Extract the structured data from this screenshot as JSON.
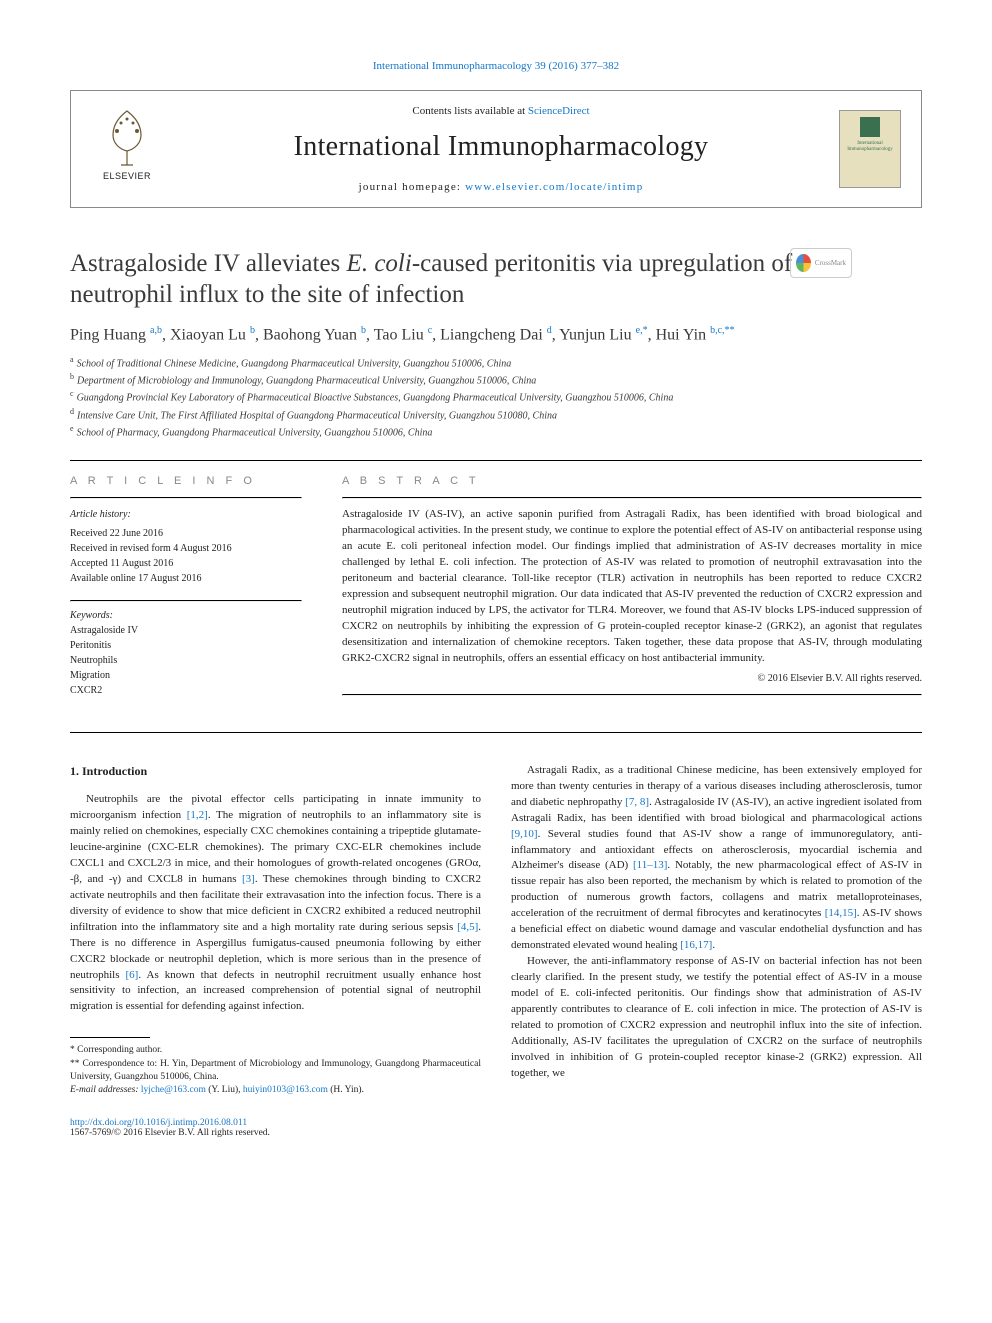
{
  "header": {
    "journal_ref": "International Immunopharmacology 39 (2016) 377–382",
    "contents_prefix": "Contents lists available at ",
    "contents_link": "ScienceDirect",
    "journal_name": "International Immunopharmacology",
    "homepage_label": "journal homepage: ",
    "homepage_url": "www.elsevier.com/locate/intimp",
    "elsevier": "ELSEVIER",
    "cover_line1": "International",
    "cover_line2": "Immunopharmacology"
  },
  "crossmark": "CrossMark",
  "title_part1": "Astragaloside IV alleviates ",
  "title_italic": "E. coli",
  "title_part2": "-caused peritonitis via upregulation of neutrophil influx to the site of infection",
  "authors": [
    {
      "name": "Ping Huang ",
      "sup": "a,b"
    },
    {
      "name": ", Xiaoyan Lu ",
      "sup": "b"
    },
    {
      "name": ", Baohong Yuan ",
      "sup": "b"
    },
    {
      "name": ", Tao Liu ",
      "sup": "c"
    },
    {
      "name": ", Liangcheng Dai ",
      "sup": "d"
    },
    {
      "name": ", Yunjun Liu ",
      "sup": "e,*"
    },
    {
      "name": ", Hui Yin ",
      "sup": "b,c,**"
    }
  ],
  "affiliations": [
    {
      "sup": "a",
      "text": "School of Traditional Chinese Medicine, Guangdong Pharmaceutical University, Guangzhou 510006, China"
    },
    {
      "sup": "b",
      "text": "Department of Microbiology and Immunology, Guangdong Pharmaceutical University, Guangzhou 510006, China"
    },
    {
      "sup": "c",
      "text": "Guangdong Provincial Key Laboratory of Pharmaceutical Bioactive Substances, Guangdong Pharmaceutical University, Guangzhou 510006, China"
    },
    {
      "sup": "d",
      "text": "Intensive Care Unit, The First Affiliated Hospital of Guangdong Pharmaceutical University, Guangzhou 510080, China"
    },
    {
      "sup": "e",
      "text": "School of Pharmacy, Guangdong Pharmaceutical University, Guangzhou 510006, China"
    }
  ],
  "article_info_header": "A R T I C L E   I N F O",
  "abstract_header": "A B S T R A C T",
  "history_label": "Article history:",
  "history": [
    "Received 22 June 2016",
    "Received in revised form 4 August 2016",
    "Accepted 11 August 2016",
    "Available online 17 August 2016"
  ],
  "keywords_label": "Keywords:",
  "keywords": [
    "Astragaloside IV",
    "Peritonitis",
    "Neutrophils",
    "Migration",
    "CXCR2"
  ],
  "abstract": "Astragaloside IV (AS-IV), an active saponin purified from Astragali Radix, has been identified with broad biological and pharmacological activities. In the present study, we continue to explore the potential effect of AS-IV on antibacterial response using an acute E. coli peritoneal infection model. Our findings implied that administration of AS-IV decreases mortality in mice challenged by lethal E. coli infection. The protection of AS-IV was related to promotion of neutrophil extravasation into the peritoneum and bacterial clearance. Toll-like receptor (TLR) activation in neutrophils has been reported to reduce CXCR2 expression and subsequent neutrophil migration. Our data indicated that AS-IV prevented the reduction of CXCR2 expression and neutrophil migration induced by LPS, the activator for TLR4. Moreover, we found that AS-IV blocks LPS-induced suppression of CXCR2 on neutrophils by inhibiting the expression of G protein-coupled receptor kinase-2 (GRK2), an agonist that regulates desensitization and internalization of chemokine receptors. Taken together, these data propose that AS-IV, through modulating GRK2-CXCR2 signal in neutrophils, offers an essential efficacy on host antibacterial immunity.",
  "copyright": "© 2016 Elsevier B.V. All rights reserved.",
  "intro_heading": "1. Introduction",
  "intro_p1_a": "Neutrophils are the pivotal effector cells participating in innate immunity to microorganism infection ",
  "intro_ref1": "[1,2]",
  "intro_p1_b": ". The migration of neutrophils to an inflammatory site is mainly relied on chemokines, especially CXC chemokines containing a tripeptide glutamate-leucine-arginine (CXC-ELR chemokines). The primary CXC-ELR chemokines include CXCL1 and CXCL2/3 in mice, and their homologues of growth-related oncogenes (GROα, -β, and -γ) and CXCL8 in humans ",
  "intro_ref2": "[3]",
  "intro_p1_c": ". These chemokines through binding to CXCR2 activate neutrophils and then facilitate their extravasation into the infection focus. There is a diversity of evidence to show that mice deficient in CXCR2 exhibited a reduced neutrophil infiltration into the inflammatory site and a high mortality rate during serious sepsis ",
  "intro_ref3": "[4,5]",
  "intro_p1_d": ". There is no difference in Aspergillus fumigatus-caused pneumonia following by either CXCR2 blockade or neutrophil depletion, which is more serious than in the presence of neutrophils ",
  "intro_ref4": "[6]",
  "intro_p1_e": ". As known that defects in neutrophil recruitment usually enhance host sensitivity to infection, an increased comprehension of potential signal of neutrophil migration is essential for defending against infection.",
  "col2_p1_a": "Astragali Radix, as a traditional Chinese medicine, has been extensively employed for more than twenty centuries in therapy of a various diseases including atherosclerosis, tumor and diabetic nephropathy ",
  "col2_ref1": "[7, 8]",
  "col2_p1_b": ". Astragaloside IV (AS-IV), an active ingredient isolated from Astragali Radix, has been identified with broad biological and pharmacological actions ",
  "col2_ref2": "[9,10]",
  "col2_p1_c": ". Several studies found that AS-IV show a range of immunoregulatory, anti-inflammatory and antioxidant effects on atherosclerosis, myocardial ischemia and Alzheimer's disease (AD) ",
  "col2_ref3": "[11–13]",
  "col2_p1_d": ". Notably, the new pharmacological effect of AS-IV in tissue repair has also been reported, the mechanism by which is related to promotion of the production of numerous growth factors, collagens and matrix metalloproteinases, acceleration of the recruitment of dermal fibrocytes and keratinocytes ",
  "col2_ref4": "[14,15]",
  "col2_p1_e": ". AS-IV shows a beneficial effect on diabetic wound damage and vascular endothelial dysfunction and has demonstrated elevated wound healing ",
  "col2_ref5": "[16,17]",
  "col2_p1_f": ".",
  "col2_p2": "However, the anti-inflammatory response of AS-IV on bacterial infection has not been clearly clarified. In the present study, we testify the potential effect of AS-IV in a mouse model of E. coli-infected peritonitis. Our findings show that administration of AS-IV apparently contributes to clearance of E. coli infection in mice. The protection of AS-IV is related to promotion of CXCR2 expression and neutrophil influx into the site of infection. Additionally, AS-IV facilitates the upregulation of CXCR2 on the surface of neutrophils involved in inhibition of G protein-coupled receptor kinase-2 (GRK2) expression. All together, we",
  "footnotes": {
    "f1": "* Corresponding author.",
    "f2": "** Correspondence to: H. Yin, Department of Microbiology and Immunology, Guangdong Pharmaceutical University, Guangzhou 510006, China.",
    "email_label": "E-mail addresses: ",
    "email1": "lyjche@163.com",
    "email1_name": " (Y. Liu), ",
    "email2": "huiyin0103@163.com",
    "email2_name": " (H. Yin)."
  },
  "footer": {
    "doi": "http://dx.doi.org/10.1016/j.intimp.2016.08.011",
    "issn": "1567-5769/© 2016 Elsevier B.V. All rights reserved."
  },
  "colors": {
    "link": "#1577c8",
    "text": "#222222",
    "muted": "#888888",
    "cover_bg": "#e6e0bf",
    "cover_text": "#3a7050"
  }
}
